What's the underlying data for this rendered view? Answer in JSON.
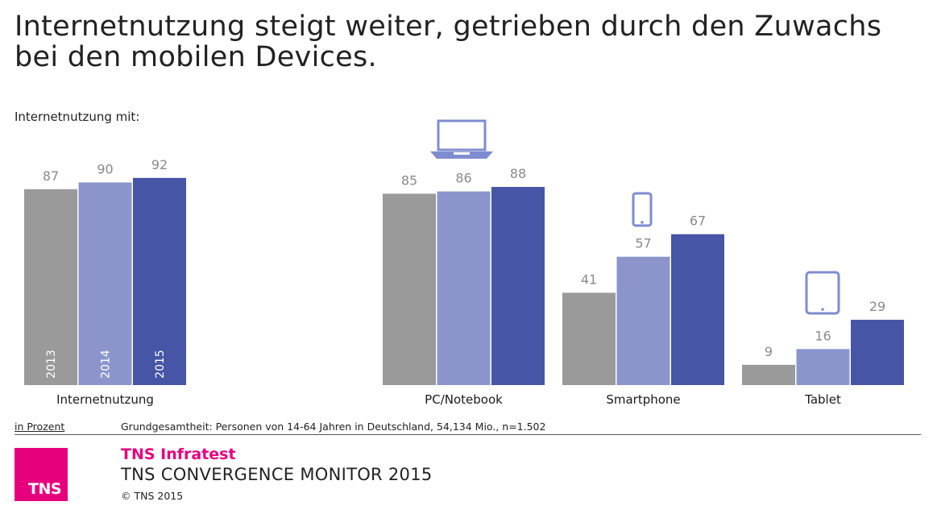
{
  "title": "Internetnutzung steigt weiter, getrieben durch den Zuwachs bei den mobilen Devices.",
  "subtitle": "Internetnutzung mit:",
  "unit_label": "in Prozent",
  "source_note": "Grundgesamtheit: Personen von 14-64 Jahren in Deutschland, 54,134 Mio., n=1.502",
  "footer": {
    "logo_text": "TNS",
    "brand": "TNS Infratest",
    "monitor": "TNS CONVERGENCE MONITOR 2015",
    "copyright": "© TNS 2015"
  },
  "colors": {
    "series_2013": "#9a9a9a",
    "series_2014": "#8b95cc",
    "series_2015": "#4655a6",
    "value_label": "#8a8a8a",
    "icon": "#7f8ccf",
    "brand": "#e6007e"
  },
  "chart_data": {
    "type": "bar",
    "title": "Internetnutzung mit:",
    "ylabel": "in Prozent",
    "ylim": [
      0,
      100
    ],
    "grid": false,
    "categories": [
      "Internetnutzung",
      "PC/Notebook",
      "Smartphone",
      "Tablet"
    ],
    "category_icons": [
      "",
      "laptop-icon",
      "smartphone-icon",
      "tablet-icon"
    ],
    "series": [
      {
        "name": "2013",
        "values": [
          87,
          85,
          41,
          9
        ]
      },
      {
        "name": "2014",
        "values": [
          90,
          86,
          57,
          16
        ]
      },
      {
        "name": "2015",
        "values": [
          92,
          88,
          67,
          29
        ]
      }
    ]
  }
}
